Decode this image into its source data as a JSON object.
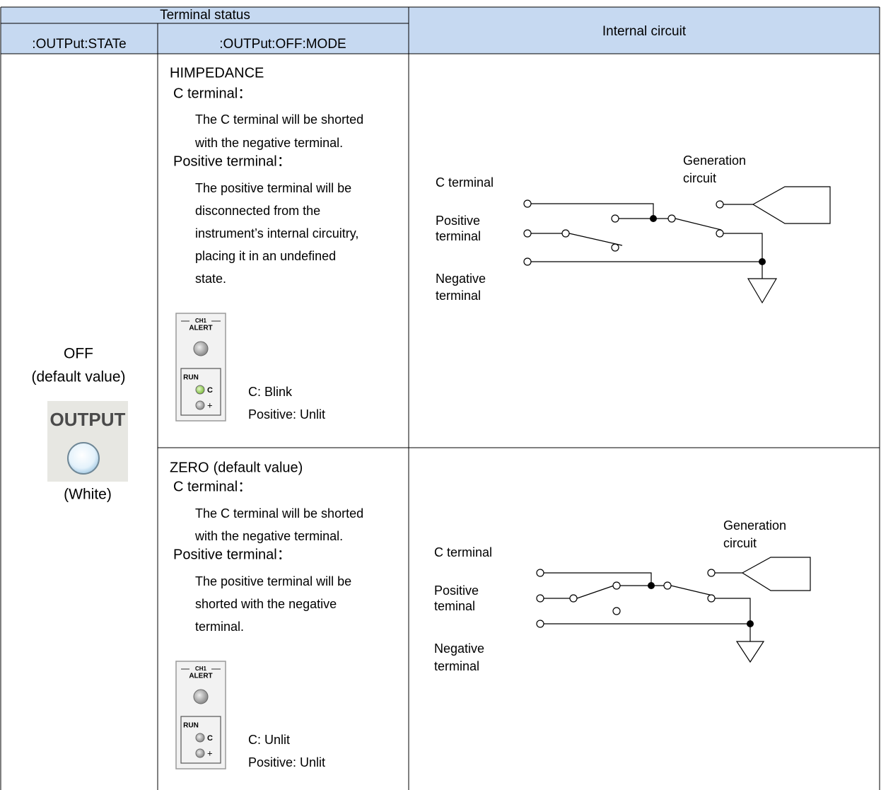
{
  "header": {
    "terminal_status": "Terminal status",
    "state_column": ":OUTPut:STATe",
    "mode_column": ":OUTPut:OFF:MODE",
    "internal_circuit": "Internal circuit"
  },
  "state": {
    "value": "OFF",
    "note": "(default value)",
    "button_label": "OUTPUT",
    "button_color": "(White)"
  },
  "rows": [
    {
      "mode": "HIMPEDANCE",
      "c_heading": "C terminal：",
      "c_lines": [
        "The C terminal will be shorted",
        "with the negative terminal."
      ],
      "positive_heading": "Positive terminal：",
      "positive_lines": [
        "The positive terminal will be",
        "disconnected from the",
        "instrument’s internal circuitry,",
        "placing it in an undefined",
        "state."
      ],
      "panel": {
        "channel": "CH1",
        "alert": "ALERT",
        "run": "RUN",
        "c": "C",
        "plus": "+"
      },
      "status": [
        "C: Blink",
        "Positive: Unlit"
      ],
      "circuit": {
        "c_terminal": "C terminal",
        "positive_terminal": [
          "Positive",
          "terminal"
        ],
        "negative_terminal": [
          "Negative",
          "terminal"
        ],
        "generation_circuit": [
          "Generation",
          "circuit"
        ]
      }
    },
    {
      "mode": "ZERO",
      "mode_note": "(default value)",
      "c_heading": "C terminal：",
      "c_lines": [
        "The C terminal will be shorted",
        "with the negative terminal."
      ],
      "positive_heading": "Positive terminal：",
      "positive_lines": [
        "The positive terminal will be",
        "shorted with the negative",
        "terminal."
      ],
      "panel": {
        "channel": "CH1",
        "alert": "ALERT",
        "run": "RUN",
        "c": "C",
        "plus": "+"
      },
      "status": [
        "C: Unlit",
        "Positive: Unlit"
      ],
      "circuit": {
        "c_terminal": "C terminal",
        "positive_terminal": [
          "Positive",
          "teminal"
        ],
        "negative_terminal": [
          "Negative",
          "terminal"
        ],
        "generation_circuit": [
          "Generation",
          "circuit"
        ]
      }
    }
  ]
}
